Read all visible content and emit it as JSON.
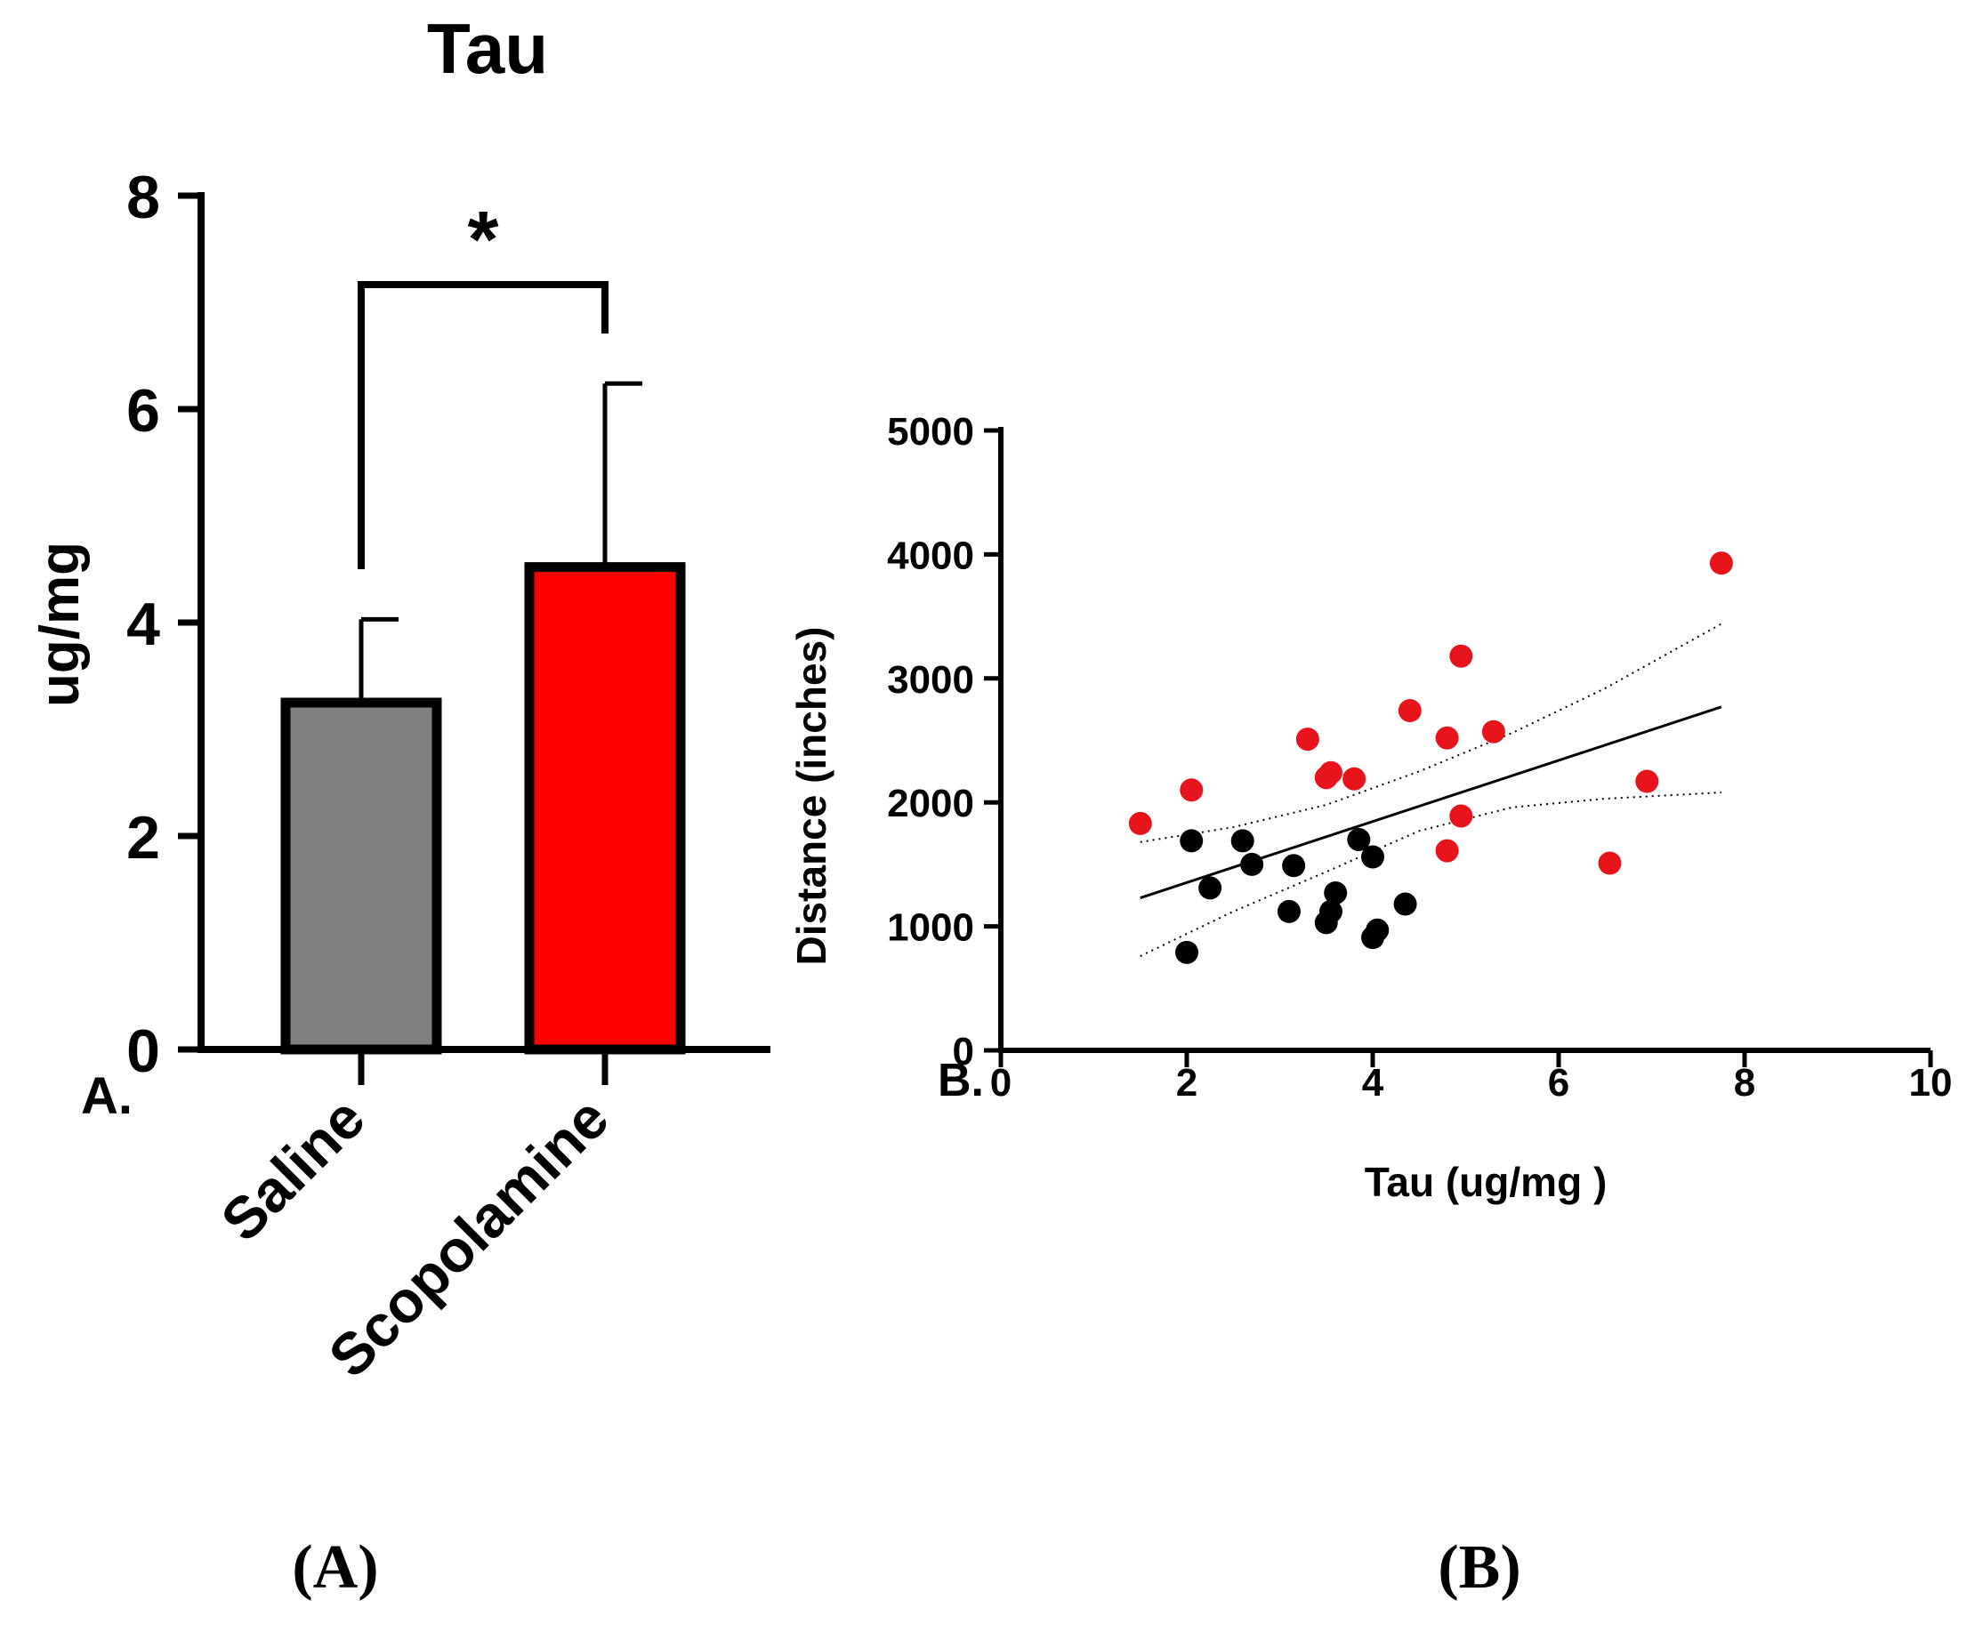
{
  "chart_data": [
    {
      "type": "bar",
      "title": "Tau",
      "panel_label": "A.",
      "caption": "(A)",
      "ylabel": "ug/mg",
      "ylim": [
        0,
        8
      ],
      "yticks": [
        "0",
        "2",
        "4",
        "6",
        "8"
      ],
      "categories": [
        "Saline",
        "Scopolamine"
      ],
      "values": [
        3.25,
        4.52
      ],
      "errors": [
        0.78,
        1.72
      ],
      "colors": [
        "#808080",
        "#ff0000"
      ],
      "significance": "*"
    },
    {
      "type": "scatter",
      "panel_label": "B.",
      "caption": "(B)",
      "xlabel": "Tau (ug/mg )",
      "ylabel": "Distance (inches)",
      "xlim": [
        0,
        10
      ],
      "ylim": [
        0,
        5000
      ],
      "xticks": [
        "0",
        "2",
        "4",
        "6",
        "8",
        "10"
      ],
      "yticks": [
        "0",
        "1000",
        "2000",
        "3000",
        "4000",
        "5000"
      ],
      "series": [
        {
          "name": "Saline",
          "color": "#000000",
          "points": [
            [
              2.05,
              1690
            ],
            [
              2.6,
              1690
            ],
            [
              2.25,
              1310
            ],
            [
              2.7,
              1500
            ],
            [
              3.15,
              1490
            ],
            [
              3.1,
              1120
            ],
            [
              3.5,
              1030
            ],
            [
              3.55,
              1120
            ],
            [
              3.6,
              1270
            ],
            [
              3.85,
              1700
            ],
            [
              4.0,
              1560
            ],
            [
              4.0,
              910
            ],
            [
              4.05,
              970
            ],
            [
              4.35,
              1180
            ],
            [
              2.0,
              790
            ]
          ]
        },
        {
          "name": "Scopolamine",
          "color": "#e8141c",
          "points": [
            [
              1.5,
              1830
            ],
            [
              2.05,
              2100
            ],
            [
              3.3,
              2510
            ],
            [
              3.5,
              2200
            ],
            [
              3.55,
              2240
            ],
            [
              3.8,
              2190
            ],
            [
              4.4,
              2740
            ],
            [
              4.8,
              2520
            ],
            [
              4.95,
              3180
            ],
            [
              4.8,
              1610
            ],
            [
              4.95,
              1890
            ],
            [
              5.3,
              2570
            ],
            [
              6.55,
              1510
            ],
            [
              6.95,
              2170
            ],
            [
              7.75,
              3930
            ]
          ]
        }
      ],
      "regression": {
        "x": [
          1.5,
          7.75
        ],
        "y": [
          1230,
          2770
        ]
      },
      "ci_upper": {
        "x": [
          1.5,
          2.5,
          3.5,
          4.5,
          5.5,
          6.5,
          7.75
        ],
        "y": [
          1680,
          1800,
          1980,
          2250,
          2560,
          2920,
          3440
        ]
      },
      "ci_lower": {
        "x": [
          1.5,
          2.5,
          3.5,
          4.5,
          5.5,
          6.5,
          7.75
        ],
        "y": [
          760,
          1120,
          1440,
          1770,
          1960,
          2030,
          2080
        ]
      }
    }
  ]
}
